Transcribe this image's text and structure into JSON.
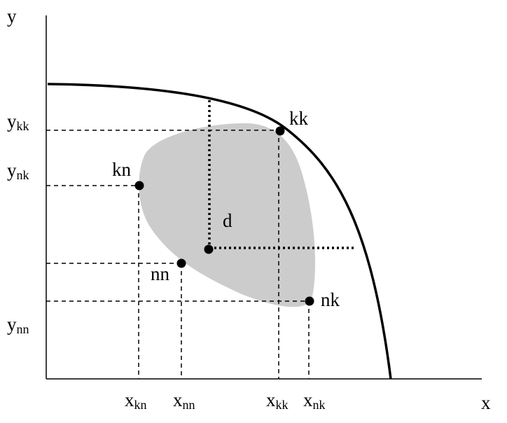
{
  "axes": {
    "x_label": "x",
    "y_label": "y"
  },
  "x_ticks": {
    "kn": {
      "base": "x",
      "sub": "kn"
    },
    "nn": {
      "base": "x",
      "sub": "nn"
    },
    "kk": {
      "base": "x",
      "sub": "kk"
    },
    "nk": {
      "base": "x",
      "sub": "nk"
    }
  },
  "y_ticks": {
    "kk": {
      "base": "y",
      "sub": "kk"
    },
    "nk": {
      "base": "y",
      "sub": "nk"
    },
    "nn": {
      "base": "y",
      "sub": "nn"
    }
  },
  "points": {
    "kk": "kk",
    "kn": "kn",
    "nn": "nn",
    "nk": "nk",
    "d": "d"
  },
  "colors": {
    "region_fill": "#cccccc",
    "line": "#000000"
  }
}
